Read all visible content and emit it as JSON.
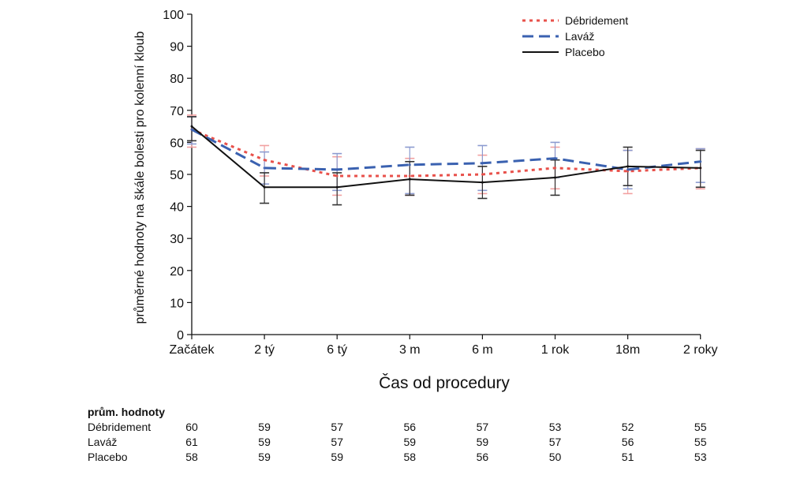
{
  "chart_data": {
    "type": "line",
    "title": "",
    "xlabel": "Čas od procedury",
    "ylabel": "průměrné hodnoty na škále bolesti pro kolenní kloub",
    "ylim": [
      0,
      100
    ],
    "yticks": [
      0,
      10,
      20,
      30,
      40,
      50,
      60,
      70,
      80,
      90,
      100
    ],
    "categories": [
      "Začátek",
      "2 tý",
      "6 tý",
      "3 m",
      "6 m",
      "1 rok",
      "18m",
      "2 roky"
    ],
    "legend_position": "top-right",
    "grid": false,
    "series": [
      {
        "name": "Débridement",
        "color": "#e8514b",
        "style": "dotted",
        "values": [
          64,
          54.5,
          49.5,
          49.5,
          50,
          52,
          51,
          52
        ],
        "err_low": [
          58.5,
          49.5,
          43.5,
          43.5,
          44,
          45.5,
          44,
          45.5
        ],
        "err_high": [
          68.5,
          59,
          55.5,
          55,
          56,
          58.5,
          57.5,
          58
        ]
      },
      {
        "name": "Laváž",
        "color": "#3a61b0",
        "style": "dashed",
        "values": [
          64,
          52,
          51.5,
          53,
          53.5,
          55,
          51.5,
          54
        ],
        "err_low": [
          59.5,
          47,
          45,
          44,
          45,
          49,
          45.5,
          47.5
        ],
        "err_high": [
          68,
          57,
          56.5,
          58.5,
          59,
          60,
          57.5,
          58
        ]
      },
      {
        "name": "Placebo",
        "color": "#111111",
        "style": "solid",
        "values": [
          65,
          46,
          46,
          48.5,
          47.5,
          49,
          52.5,
          52
        ],
        "err_low": [
          60.5,
          41,
          40.5,
          43.5,
          42.5,
          43.5,
          46.5,
          46
        ],
        "err_high": [
          68,
          50.5,
          50.5,
          54,
          52.5,
          54.5,
          58.5,
          57.5
        ]
      }
    ]
  },
  "table": {
    "header": "prům. hodnoty",
    "rows": [
      {
        "label": "Débridement",
        "values": [
          "60",
          "59",
          "57",
          "56",
          "57",
          "53",
          "52",
          "55"
        ]
      },
      {
        "label": "Laváž",
        "values": [
          "61",
          "59",
          "57",
          "59",
          "59",
          "57",
          "56",
          "55"
        ]
      },
      {
        "label": "Placebo",
        "values": [
          "58",
          "59",
          "59",
          "58",
          "56",
          "50",
          "51",
          "53"
        ]
      }
    ]
  }
}
